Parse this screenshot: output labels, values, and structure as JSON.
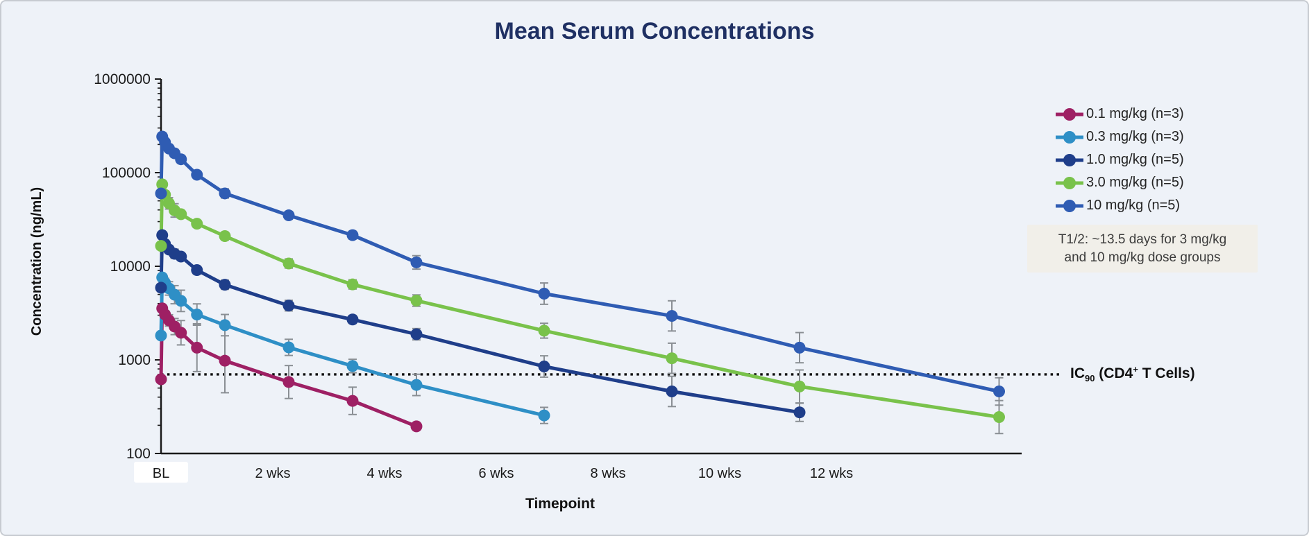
{
  "title": "Mean Serum Concentrations",
  "colors": {
    "background": "#EEF2F8",
    "title_text": "#1F3063",
    "axis": "#1A1A1A",
    "tick_label": "#1A1A1A",
    "error_bar": "#8A8F94",
    "reference_line": "#0D0D0D",
    "annotation_bg": "#F1EFE9",
    "annotation_text": "#3B3B3B",
    "bl_highlight": "#FFFFFF"
  },
  "annotation": {
    "line1": "T1/2: ~13.5 days for 3 mg/kg",
    "line2": "and 10 mg/kg dose groups"
  },
  "reference": {
    "pre": "IC",
    "sub": "90",
    "mid": " (CD4",
    "sup": "+",
    "post": " T Cells)"
  },
  "chart_data": {
    "type": "line",
    "title": "Mean Serum Concentrations",
    "xlabel": "Timepoint",
    "ylabel": "Concentration (ng/mL)",
    "y_scale": "log",
    "ylim": [
      100,
      1000000
    ],
    "x_unit": "days",
    "grid": false,
    "legend_position": "right",
    "y_axis": {
      "ticks": [
        {
          "label": "1000000",
          "value": 1000000
        },
        {
          "label": "100000",
          "value": 100000
        },
        {
          "label": "10000",
          "value": 10000
        },
        {
          "label": "1000",
          "value": 1000
        },
        {
          "label": "100",
          "value": 100
        }
      ]
    },
    "x_axis": {
      "ticks": [
        {
          "label": "BL",
          "day": 0,
          "highlight": true
        },
        {
          "label": "2 wks",
          "day": 14,
          "highlight": false
        },
        {
          "label": "4 wks",
          "day": 28,
          "highlight": false
        },
        {
          "label": "6 wks",
          "day": 42,
          "highlight": false
        },
        {
          "label": "8 wks",
          "day": 56,
          "highlight": false
        },
        {
          "label": "10 wks",
          "day": 70,
          "highlight": false
        },
        {
          "label": "12 wks",
          "day": 84,
          "highlight": false
        }
      ]
    },
    "reference_line": {
      "label": "IC90 (CD4+ T Cells)",
      "value": 700,
      "style": "dotted"
    },
    "series": [
      {
        "name": "0.1 mg/kg (n=3)",
        "color": "#9E2064",
        "points": [
          [
            0,
            620,
            0
          ],
          [
            0.15,
            3550,
            0
          ],
          [
            0.5,
            3050,
            1.1
          ],
          [
            1,
            2640,
            1.15
          ],
          [
            1.7,
            2270,
            1.22
          ],
          [
            2.5,
            1950,
            1.35
          ],
          [
            4.5,
            1350,
            1.8
          ],
          [
            8,
            980,
            2.2
          ],
          [
            16,
            580,
            1.5
          ],
          [
            24,
            365,
            1.4
          ],
          [
            32,
            195,
            0
          ]
        ]
      },
      {
        "name": "0.3 mg/kg (n=3)",
        "color": "#2E8FC6",
        "points": [
          [
            0,
            1820,
            0
          ],
          [
            0.15,
            7600,
            1.08
          ],
          [
            0.5,
            6650,
            1.12
          ],
          [
            1,
            5800,
            1.18
          ],
          [
            1.7,
            4970,
            1.25
          ],
          [
            2.5,
            4270,
            1.3
          ],
          [
            4.5,
            3050,
            1.3
          ],
          [
            8,
            2350,
            1.3
          ],
          [
            16,
            1360,
            1.22
          ],
          [
            24,
            860,
            1.18
          ],
          [
            32,
            540,
            1.3
          ],
          [
            48,
            255,
            1.22
          ]
        ]
      },
      {
        "name": "1.0 mg/kg (n=5)",
        "color": "#1F3E8A",
        "points": [
          [
            0,
            5900,
            0
          ],
          [
            0.15,
            21500,
            0
          ],
          [
            0.5,
            17300,
            1.06
          ],
          [
            1,
            15100,
            1.1
          ],
          [
            1.7,
            13600,
            1.12
          ],
          [
            2.5,
            12700,
            0
          ],
          [
            4.5,
            9100,
            1.1
          ],
          [
            8,
            6350,
            1.12
          ],
          [
            16,
            3800,
            1.14
          ],
          [
            24,
            2700,
            1.1
          ],
          [
            32,
            1880,
            1.15
          ],
          [
            48,
            850,
            1.3
          ],
          [
            64,
            460,
            1.45
          ],
          [
            80,
            275,
            1.25
          ]
        ]
      },
      {
        "name": "3.0 mg/kg (n=5)",
        "color": "#79C24B",
        "points": [
          [
            0,
            16500,
            0
          ],
          [
            0.15,
            75000,
            0
          ],
          [
            0.5,
            58000,
            1.1
          ],
          [
            1,
            47000,
            1.15
          ],
          [
            1.7,
            39500,
            1.18
          ],
          [
            2.5,
            36000,
            0
          ],
          [
            4.5,
            28500,
            1.08
          ],
          [
            8,
            21000,
            1.1
          ],
          [
            16,
            10700,
            1.12
          ],
          [
            24,
            6400,
            1.12
          ],
          [
            32,
            4300,
            1.15
          ],
          [
            48,
            2050,
            1.2
          ],
          [
            64,
            1040,
            1.45
          ],
          [
            80,
            520,
            1.5
          ],
          [
            105,
            245,
            1.5
          ]
        ]
      },
      {
        "name": "10 mg/kg (n=5)",
        "color": "#2F5CB3",
        "points": [
          [
            0,
            60000,
            0
          ],
          [
            0.15,
            243000,
            0
          ],
          [
            0.5,
            211000,
            0
          ],
          [
            1,
            181000,
            1.05
          ],
          [
            1.7,
            161000,
            1.1
          ],
          [
            2.5,
            139000,
            1.1
          ],
          [
            4.5,
            95000,
            1.08
          ],
          [
            8,
            60000,
            1.12
          ],
          [
            16,
            35000,
            1.1
          ],
          [
            24,
            21500,
            1.1
          ],
          [
            32,
            11000,
            1.18
          ],
          [
            48,
            5100,
            1.3
          ],
          [
            64,
            2950,
            1.45
          ],
          [
            80,
            1350,
            1.45
          ],
          [
            105,
            460,
            1.4
          ]
        ]
      }
    ]
  }
}
